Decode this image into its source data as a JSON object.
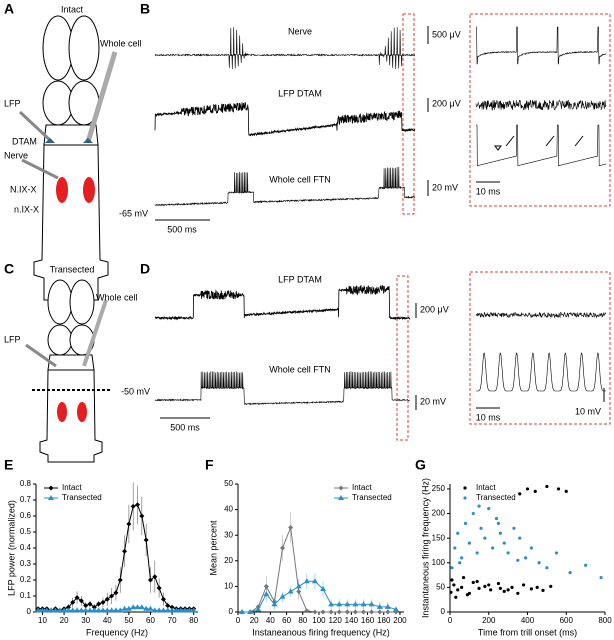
{
  "panel_labels": [
    "A",
    "B",
    "C",
    "D",
    "E",
    "F",
    "G"
  ],
  "diagram_a": {
    "title": "Intact",
    "whole_cell": "Whole cell",
    "lfp": "LFP",
    "dtam": "DTAM",
    "nerve": "Nerve",
    "nucleus_upper": "N.IX-X",
    "nucleus_lower": "n.IX-X"
  },
  "traces_b": {
    "nerve": "Nerve",
    "nerve_scale": "500 μV",
    "lfp": "LFP DTAM",
    "lfp_scale": "200 μV",
    "cell": "Whole cell FTN",
    "cell_scale": "20 mV",
    "rest": "-65 mV",
    "time_scale": "500 ms",
    "inset_time_scale": "10 ms"
  },
  "diagram_c": {
    "title": "Transected",
    "whole_cell": "Whole cell",
    "lfp": "LFP"
  },
  "traces_d": {
    "lfp": "LFP DTAM",
    "lfp_scale": "200 μV",
    "cell": "Whole cell FTN",
    "cell_scale": "20 mV",
    "rest": "-50 mV",
    "time_scale": "500 ms",
    "inset_time_scale": "10 ms",
    "inset_v_scale": "10 mV"
  },
  "chart_data": [
    {
      "type": "line",
      "xlabel": "Frequency (Hz)",
      "ylabel": "LFP power (normalized)",
      "x": [
        8,
        10,
        12,
        14,
        16,
        18,
        20,
        22,
        24,
        26,
        28,
        30,
        32,
        34,
        36,
        38,
        40,
        42,
        44,
        46,
        48,
        50,
        52,
        54,
        56,
        58,
        60,
        62,
        64,
        66,
        68,
        70,
        72,
        74,
        76,
        78,
        80
      ],
      "xlim": [
        7,
        82
      ],
      "xticks": [
        10,
        20,
        30,
        40,
        50,
        60,
        70,
        80
      ],
      "ylim": [
        0,
        0.8
      ],
      "yticks": [
        0,
        0.1,
        0.2,
        0.3,
        0.4,
        0.5,
        0.6,
        0.7,
        0.8
      ],
      "legend": "upper-left",
      "series": [
        {
          "name": "Intact",
          "color": "#000000",
          "marker": "diamond",
          "values": [
            0.02,
            0.02,
            0.02,
            0.01,
            0.02,
            0.01,
            0.02,
            0.03,
            0.06,
            0.09,
            0.07,
            0.04,
            0.05,
            0.03,
            0.05,
            0.06,
            0.08,
            0.1,
            0.12,
            0.2,
            0.38,
            0.55,
            0.66,
            0.67,
            0.6,
            0.45,
            0.2,
            0.22,
            0.15,
            0.08,
            0.04,
            0.03,
            0.02,
            0.02,
            0.02,
            0.02,
            0.02
          ],
          "errors": [
            0.01,
            0.01,
            0.01,
            0.01,
            0.01,
            0.01,
            0.01,
            0.02,
            0.03,
            0.04,
            0.03,
            0.02,
            0.02,
            0.02,
            0.02,
            0.03,
            0.04,
            0.05,
            0.05,
            0.08,
            0.1,
            0.12,
            0.15,
            0.12,
            0.12,
            0.1,
            0.08,
            0.1,
            0.06,
            0.04,
            0.02,
            0.01,
            0.01,
            0.01,
            0.01,
            0.01,
            0.01
          ]
        },
        {
          "name": "Transected",
          "color": "#2a8fc9",
          "marker": "triangle",
          "values": [
            0.01,
            0.01,
            0.01,
            0.01,
            0.01,
            0.01,
            0.01,
            0.01,
            0.01,
            0.01,
            0.01,
            0.01,
            0.01,
            0.01,
            0.01,
            0.01,
            0.01,
            0.01,
            0.01,
            0.01,
            0.02,
            0.02,
            0.03,
            0.03,
            0.03,
            0.02,
            0.02,
            0.01,
            0.01,
            0.01,
            0.01,
            0.01,
            0.01,
            0.01,
            0.01,
            0.01,
            0.01
          ]
        }
      ]
    },
    {
      "type": "line",
      "xlabel": "Instaneanous firing frequency (Hz)",
      "ylabel": "Mean percent",
      "x": [
        5,
        15,
        25,
        35,
        45,
        55,
        65,
        75,
        85,
        95,
        105,
        115,
        125,
        135,
        145,
        155,
        165,
        175,
        185,
        195
      ],
      "xlim": [
        0,
        205
      ],
      "xticks": [
        0,
        20,
        40,
        60,
        80,
        100,
        120,
        140,
        160,
        180,
        200
      ],
      "ylim": [
        0,
        50
      ],
      "yticks": [
        0,
        10,
        20,
        30,
        40,
        50
      ],
      "legend": "upper-right",
      "series": [
        {
          "name": "Intact",
          "color": "#777777",
          "marker": "diamond",
          "values": [
            0,
            0,
            2,
            10,
            4,
            25,
            33,
            8,
            0.5,
            0,
            0,
            0,
            0,
            0,
            0,
            0,
            0,
            0,
            0,
            0
          ],
          "errors": [
            0,
            0,
            1,
            4,
            2,
            5,
            6,
            3,
            0.5,
            0,
            0,
            0,
            0,
            0,
            0,
            0,
            0,
            0,
            0,
            0
          ]
        },
        {
          "name": "Transected",
          "color": "#2a8fc9",
          "marker": "triangle",
          "values": [
            0,
            0,
            1,
            7,
            3,
            6,
            8,
            10,
            12,
            12,
            9,
            3,
            3,
            3,
            3,
            3,
            3,
            2,
            2,
            1
          ],
          "errors": [
            0,
            0,
            1,
            3,
            2,
            2,
            2,
            3,
            3,
            3,
            3,
            2,
            2,
            2,
            2,
            2,
            2,
            2,
            2,
            1
          ]
        }
      ]
    },
    {
      "type": "scatter",
      "xlabel": "Time from trill onset (ms)",
      "ylabel": "Instantaneous firing frequency (Hz)",
      "xlim": [
        0,
        800
      ],
      "xticks": [
        0,
        200,
        400,
        600,
        800
      ],
      "ylim": [
        0,
        260
      ],
      "yticks": [
        0,
        50,
        100,
        150,
        200,
        250
      ],
      "legend": "upper-left",
      "series": [
        {
          "name": "Intact",
          "color": "#000000",
          "x": [
            5,
            20,
            40,
            60,
            90,
            120,
            150,
            180,
            210,
            250,
            280,
            320,
            350,
            380,
            420,
            450,
            480,
            520,
            10,
            30,
            70,
            100,
            140,
            200,
            260,
            300,
            360,
            400,
            440,
            500,
            560,
            600
          ],
          "values": [
            40,
            55,
            45,
            50,
            35,
            60,
            48,
            52,
            45,
            58,
            42,
            50,
            38,
            55,
            47,
            50,
            44,
            52,
            65,
            30,
            70,
            38,
            62,
            55,
            48,
            45,
            240,
            250,
            245,
            255,
            250,
            245
          ]
        },
        {
          "name": "Transected",
          "color": "#2a8fc9",
          "x": [
            10,
            25,
            40,
            60,
            80,
            100,
            120,
            140,
            160,
            180,
            200,
            220,
            240,
            260,
            280,
            300,
            330,
            360,
            390,
            420,
            460,
            500,
            550,
            620,
            700,
            780,
            50,
            150,
            250,
            350
          ],
          "values": [
            90,
            130,
            160,
            110,
            180,
            140,
            200,
            120,
            170,
            150,
            210,
            130,
            190,
            160,
            140,
            120,
            170,
            150,
            110,
            130,
            100,
            90,
            120,
            80,
            95,
            70,
            100,
            215,
            180,
            105
          ]
        }
      ]
    }
  ]
}
